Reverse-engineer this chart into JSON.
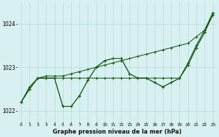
{
  "title": "Graphe pression niveau de la mer (hPa)",
  "background_color": "#d8f0f0",
  "grid_color": "#b0dada",
  "line_color": "#1a5c1a",
  "xlim": [
    -0.5,
    23.5
  ],
  "ylim": [
    1021.75,
    1024.5
  ],
  "yticks": [
    1022,
    1023,
    1024
  ],
  "xticks": [
    0,
    1,
    2,
    3,
    4,
    5,
    6,
    7,
    8,
    9,
    10,
    11,
    12,
    13,
    14,
    15,
    16,
    17,
    18,
    19,
    20,
    21,
    22,
    23
  ],
  "series": [
    [
      1022.2,
      1022.5,
      1022.75,
      1022.75,
      1022.75,
      1022.1,
      1022.1,
      1022.35,
      1022.7,
      1023.0,
      1023.15,
      1023.2,
      1023.2,
      1022.85,
      1022.75,
      1022.75,
      1022.65,
      1022.55,
      1022.65,
      1022.75,
      1023.1,
      1023.5,
      1023.85,
      1024.25
    ],
    [
      1022.2,
      1022.5,
      1022.75,
      1022.75,
      1022.75,
      1022.1,
      1022.1,
      1022.35,
      1022.7,
      1023.0,
      1023.15,
      1023.2,
      1023.2,
      1022.85,
      1022.75,
      1022.75,
      1022.65,
      1022.55,
      1022.65,
      1022.75,
      1023.05,
      1023.45,
      1023.8,
      1024.2
    ],
    [
      1022.2,
      1022.5,
      1022.75,
      1022.75,
      1022.75,
      1022.75,
      1022.75,
      1022.75,
      1022.75,
      1022.75,
      1022.75,
      1022.75,
      1022.75,
      1022.75,
      1022.75,
      1022.75,
      1022.75,
      1022.75,
      1022.75,
      1022.75,
      1023.05,
      1023.45,
      1023.8,
      1024.25
    ],
    [
      1022.2,
      1022.55,
      1022.75,
      1022.8,
      1022.8,
      1022.8,
      1022.85,
      1022.9,
      1022.95,
      1023.0,
      1023.05,
      1023.1,
      1023.15,
      1023.2,
      1023.25,
      1023.3,
      1023.35,
      1023.4,
      1023.45,
      1023.5,
      1023.55,
      1023.7,
      1023.85,
      1024.25
    ]
  ]
}
